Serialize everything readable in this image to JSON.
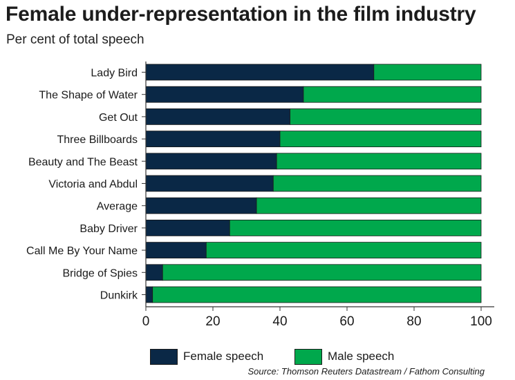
{
  "chart_data": {
    "type": "bar",
    "orientation": "horizontal",
    "stacked": true,
    "title": "Female under-representation in the film industry",
    "subtitle": "Per cent of total speech",
    "categories": [
      "Lady Bird",
      "The Shape of Water",
      "Get Out",
      "Three Billboards",
      "Beauty and The Beast",
      "Victoria and Abdul",
      "Average",
      "Baby Driver",
      "Call Me By Your Name",
      "Bridge of Spies",
      "Dunkirk"
    ],
    "series": [
      {
        "name": "Female speech",
        "color": "#0a2846",
        "values": [
          68,
          47,
          43,
          40,
          39,
          38,
          33,
          25,
          18,
          5,
          2
        ]
      },
      {
        "name": "Male speech",
        "color": "#00a84c",
        "values": [
          32,
          53,
          57,
          60,
          61,
          62,
          67,
          75,
          82,
          95,
          98
        ]
      }
    ],
    "xlim": [
      0,
      100
    ],
    "xticks": [
      0,
      20,
      40,
      60,
      80,
      100
    ],
    "grid": false,
    "legend_position": "bottom",
    "source": "Source: Thomson Reuters Datastream / Fathom Consulting"
  }
}
